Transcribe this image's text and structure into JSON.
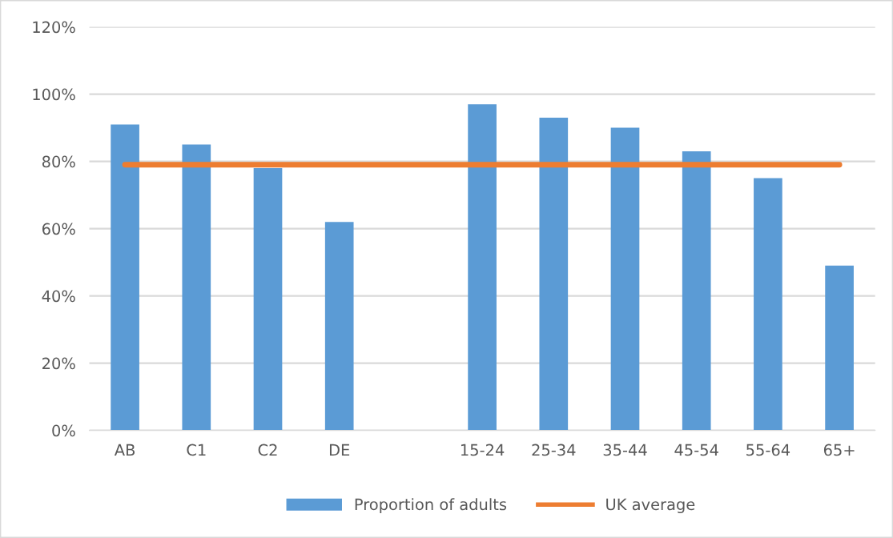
{
  "chart_data": {
    "type": "bar",
    "categories": [
      "AB",
      "C1",
      "C2",
      "DE",
      null,
      "15-24",
      "25-34",
      "35-44",
      "45-54",
      "55-64",
      "65+"
    ],
    "series": [
      {
        "name": "Proportion of adults",
        "color": "#5b9bd5",
        "values": [
          91,
          85,
          78,
          62,
          null,
          97,
          93,
          90,
          83,
          75,
          49
        ]
      },
      {
        "name": "UK average",
        "type": "line",
        "color": "#ed7d31",
        "values": [
          79,
          79,
          79,
          79,
          79,
          79,
          79,
          79,
          79,
          79,
          79
        ]
      }
    ],
    "ylim": [
      0,
      120
    ],
    "yticks": [
      {
        "value": 0,
        "label": "0%"
      },
      {
        "value": 20,
        "label": "20%"
      },
      {
        "value": 40,
        "label": "40%"
      },
      {
        "value": 60,
        "label": "60%"
      },
      {
        "value": 80,
        "label": "80%"
      },
      {
        "value": 100,
        "label": "100%"
      },
      {
        "value": 120,
        "label": "120%"
      }
    ],
    "grid": "y",
    "legend": "bottom"
  }
}
